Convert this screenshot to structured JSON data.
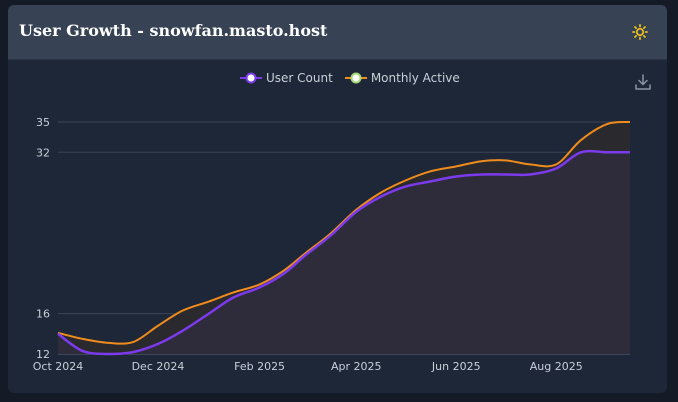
{
  "header": {
    "title": "User Growth - snowfan.masto.host"
  },
  "icons": {
    "theme": "sun-icon",
    "download": "download-icon"
  },
  "colors": {
    "card_bg": "#1e2737",
    "header_bg": "#374255",
    "user_count": "#7c3aed",
    "monthly_active": "#f08c1e",
    "sun": "#f5c518"
  },
  "chart_data": {
    "type": "area",
    "title": "",
    "xlabel": "",
    "ylabel": "",
    "x": [
      "2024-10-01",
      "2024-10-16",
      "2024-11-01",
      "2024-11-16",
      "2024-12-01",
      "2024-12-16",
      "2025-01-01",
      "2025-01-16",
      "2025-02-01",
      "2025-02-16",
      "2025-03-01",
      "2025-03-16",
      "2025-04-01",
      "2025-04-16",
      "2025-05-01",
      "2025-05-16",
      "2025-06-01",
      "2025-06-16",
      "2025-07-01",
      "2025-07-16",
      "2025-08-01",
      "2025-08-16",
      "2025-09-01",
      "2025-09-15"
    ],
    "series": [
      {
        "name": "User Count",
        "values": [
          14,
          12.3,
          12,
          12.2,
          13,
          14.3,
          16,
          17.6,
          18.6,
          20,
          21.8,
          23.7,
          26.1,
          27.6,
          28.6,
          29.1,
          29.6,
          29.8,
          29.8,
          29.8,
          30.4,
          32,
          32,
          32
        ]
      },
      {
        "name": "Monthly Active",
        "values": [
          14.1,
          13.5,
          13.1,
          13.2,
          14.8,
          16.3,
          17.2,
          18.1,
          18.9,
          20.3,
          22,
          23.9,
          26.3,
          28,
          29.2,
          30.1,
          30.6,
          31.1,
          31.2,
          30.8,
          30.8,
          33.2,
          34.8,
          35
        ]
      }
    ],
    "x_ticks": [
      "Oct 2024",
      "Dec 2024",
      "Feb 2025",
      "Apr 2025",
      "Jun 2025",
      "Aug 2025"
    ],
    "y_ticks": [
      12,
      16,
      32,
      35
    ],
    "ylim": [
      12,
      35
    ],
    "xlim": [
      "2024-10-01",
      "2025-09-15"
    ],
    "grid": true,
    "legend": "top-center"
  }
}
